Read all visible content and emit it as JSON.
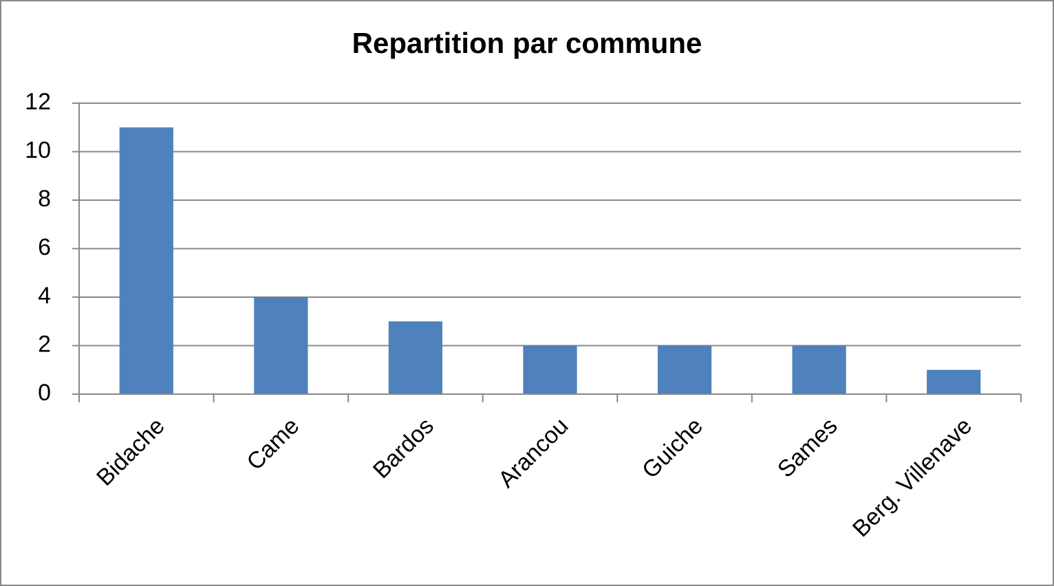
{
  "chart_data": {
    "type": "bar",
    "title": "Repartition par commune",
    "categories": [
      "Bidache",
      "Came",
      "Bardos",
      "Arancou",
      "Guiche",
      "Sames",
      "Berg. Villenave"
    ],
    "values": [
      11,
      4,
      3,
      2,
      2,
      2,
      1
    ],
    "color": "#4f81bd",
    "ylim": [
      0,
      12
    ],
    "yticks": [
      0,
      2,
      4,
      6,
      8,
      10,
      12
    ],
    "grid": true
  }
}
